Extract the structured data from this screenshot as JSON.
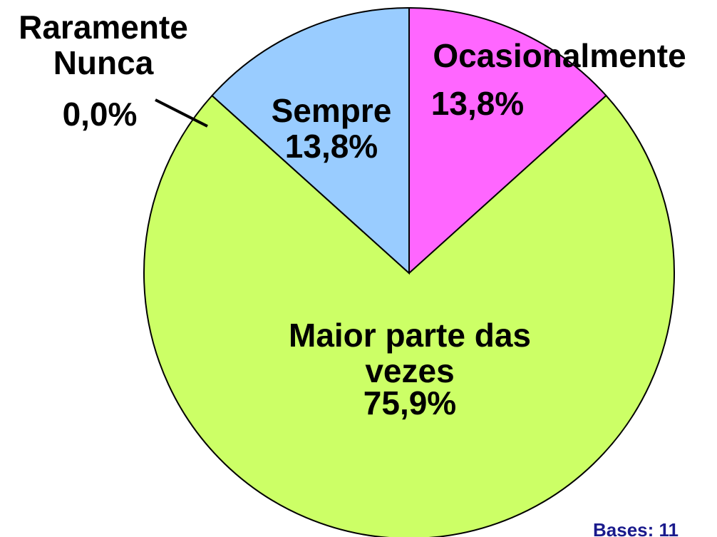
{
  "chart_data": {
    "type": "pie",
    "categories": [
      "Ocasionalmente",
      "Maior parte das vezes",
      "Raramente\nNunca",
      "Sempre"
    ],
    "values": [
      13.8,
      75.9,
      0.0,
      13.8
    ],
    "value_labels": [
      "13,8%",
      "75,9%",
      "0,0%",
      "13,8%"
    ],
    "colors": [
      "#ff66ff",
      "#ccff66",
      "#ccff66",
      "#99ccff"
    ],
    "note": "Bases: 11"
  }
}
